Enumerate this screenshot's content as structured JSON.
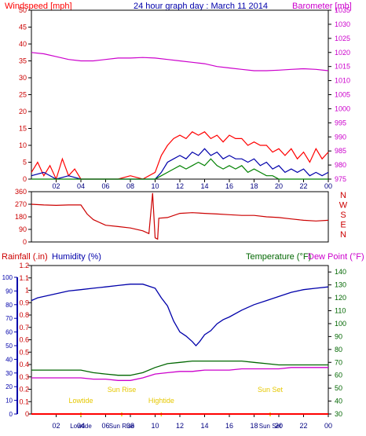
{
  "header": {
    "title": "24 hour graph day : March 11 2014",
    "left_label": "Windspeed [mph]",
    "right_label": "Barometer [mb]"
  },
  "colors": {
    "wind": "#ff0000",
    "gust": "#ff0000",
    "avg_wind": "#0000aa",
    "green": "#008000",
    "barometer": "#cc00cc",
    "direction": "#cc0000",
    "humidity": "#0000aa",
    "temperature": "#006600",
    "dewpoint": "#cc00cc",
    "events": "#e6c800",
    "title": "#0000aa"
  },
  "chart_data": [
    {
      "type": "line",
      "id": "wind_baro",
      "title": "24 hour graph day : March 11 2014",
      "ylabel": "Windspeed [mph]",
      "y2label": "Barometer [mb]",
      "x_ticks": [
        "02",
        "04",
        "06",
        "08",
        "10",
        "12",
        "14",
        "16",
        "18",
        "20",
        "22",
        "00"
      ],
      "y_ticks": [
        0,
        5,
        10,
        15,
        20,
        25,
        30,
        35,
        40,
        45,
        50
      ],
      "y2_ticks": [
        975,
        980,
        985,
        990,
        995,
        1000,
        1005,
        1010,
        1015,
        1020,
        1025,
        1030,
        1035
      ],
      "ylim": [
        0,
        50
      ],
      "y2lim": [
        975,
        1035
      ],
      "xlim": [
        0,
        24
      ],
      "series": [
        {
          "name": "Barometer",
          "axis": "right",
          "x": [
            0,
            1,
            2,
            3,
            4,
            5,
            6,
            7,
            8,
            9,
            10,
            11,
            12,
            13,
            14,
            15,
            16,
            17,
            18,
            19,
            20,
            21,
            22,
            23,
            24
          ],
          "values": [
            1020,
            1019.5,
            1018.5,
            1017.5,
            1017,
            1017,
            1017.5,
            1018,
            1018,
            1018.2,
            1018,
            1017.5,
            1017,
            1016.5,
            1016,
            1015,
            1014.5,
            1014,
            1013.5,
            1013.5,
            1013.7,
            1014,
            1014.2,
            1014,
            1013.5
          ]
        },
        {
          "name": "Gust",
          "axis": "left",
          "x": [
            0,
            0.5,
            1,
            1.5,
            2,
            2.5,
            3,
            3.5,
            4,
            5,
            6,
            7,
            8,
            9,
            10,
            10.5,
            11,
            11.5,
            12,
            12.5,
            13,
            13.5,
            14,
            14.5,
            15,
            15.5,
            16,
            16.5,
            17,
            17.5,
            18,
            18.5,
            19,
            19.5,
            20,
            20.5,
            21,
            21.5,
            22,
            22.5,
            23,
            23.5,
            24
          ],
          "values": [
            2,
            5,
            1,
            4,
            0,
            6,
            1,
            3,
            0,
            0,
            0,
            0,
            1,
            0,
            2,
            7,
            10,
            12,
            13,
            12,
            14,
            13,
            14,
            12,
            13,
            11,
            13,
            12,
            12,
            10,
            11,
            10,
            10,
            8,
            9,
            7,
            9,
            6,
            8,
            5,
            9,
            6,
            8
          ]
        },
        {
          "name": "Average wind",
          "axis": "left",
          "x": [
            0,
            1,
            2,
            3,
            4,
            6,
            8,
            10,
            10.5,
            11,
            11.5,
            12,
            12.5,
            13,
            13.5,
            14,
            14.5,
            15,
            15.5,
            16,
            16.5,
            17,
            17.5,
            18,
            18.5,
            19,
            19.5,
            20,
            20.5,
            21,
            21.5,
            22,
            22.5,
            23,
            23.5,
            24
          ],
          "values": [
            1,
            2,
            0,
            1,
            0,
            0,
            0,
            0,
            2,
            5,
            6,
            7,
            6,
            8,
            7,
            9,
            7,
            8,
            6,
            7,
            6,
            6,
            5,
            6,
            4,
            5,
            3,
            4,
            2,
            3,
            2,
            3,
            1,
            2,
            1,
            2
          ]
        },
        {
          "name": "Wind speed",
          "axis": "left",
          "x": [
            0,
            10,
            10.5,
            11,
            11.5,
            12,
            12.5,
            13,
            13.5,
            14,
            14.5,
            15,
            15.5,
            16,
            16.5,
            17,
            17.5,
            18,
            18.5,
            19,
            19.5,
            20,
            24
          ],
          "values": [
            0,
            0,
            1,
            2,
            3,
            4,
            3,
            4,
            5,
            4,
            6,
            4,
            3,
            4,
            3,
            4,
            2,
            3,
            2,
            1,
            1,
            0,
            0
          ]
        }
      ]
    },
    {
      "type": "line",
      "id": "direction",
      "y_ticks": [
        0,
        90,
        180,
        270,
        360
      ],
      "ylim": [
        0,
        360
      ],
      "xlim": [
        0,
        24
      ],
      "compass_labels": [
        "N",
        "W",
        "S",
        "E",
        "N"
      ],
      "series": [
        {
          "name": "Wind direction",
          "x": [
            0,
            1,
            2,
            3,
            4,
            4.5,
            5,
            6,
            7,
            8,
            9,
            9.5,
            9.8,
            10,
            10.2,
            10.3,
            11,
            12,
            13,
            14,
            15,
            16,
            17,
            18,
            19,
            20,
            21,
            22,
            23,
            24
          ],
          "values": [
            270,
            265,
            262,
            265,
            265,
            200,
            160,
            120,
            110,
            100,
            80,
            60,
            350,
            30,
            20,
            170,
            175,
            205,
            210,
            205,
            200,
            195,
            190,
            190,
            180,
            175,
            165,
            155,
            150,
            155
          ]
        }
      ]
    },
    {
      "type": "line",
      "id": "rain_humidity_temp",
      "ylabel": "Rainfall (.in)",
      "y1label": "Humidity (%)",
      "y2label": "Temperature (°F)",
      "y3label": "Dew Point (°F)",
      "x_ticks": [
        "02",
        "04",
        "06",
        "08",
        "10",
        "12",
        "14",
        "16",
        "18",
        "20",
        "22",
        "00"
      ],
      "y_ticks": [
        0,
        0.1,
        0.2,
        0.3,
        0.4,
        0.5,
        0.6,
        0.7,
        0.8,
        0.9,
        1,
        1.1,
        1.2
      ],
      "y1_ticks": [
        0,
        10,
        20,
        30,
        40,
        50,
        60,
        70,
        80,
        90,
        100
      ],
      "y2_ticks": [
        30,
        40,
        50,
        60,
        70,
        80,
        90,
        100,
        110,
        120,
        130,
        140
      ],
      "ylim": [
        0,
        1.2
      ],
      "y2lim": [
        30,
        145
      ],
      "xlim": [
        0,
        24
      ],
      "events": [
        {
          "label": "Lowtide",
          "x": 4.0
        },
        {
          "label": "Sun Rise",
          "x": 7.3
        },
        {
          "label": "Hightide",
          "x": 10.5
        },
        {
          "label": "Sun Set",
          "x": 19.3
        }
      ],
      "event_axis_labels": [
        "Lowtide",
        "Sun Rise",
        "Sun Set"
      ],
      "series": [
        {
          "name": "Humidity",
          "axis": "humidity",
          "x": [
            0,
            0.5,
            1,
            2,
            3,
            4,
            5,
            6,
            7,
            8,
            9,
            10,
            10.5,
            11,
            11.5,
            12,
            12.5,
            13,
            13.3,
            13.6,
            14,
            14.5,
            15,
            15.5,
            16,
            17,
            18,
            19,
            20,
            21,
            22,
            23,
            24
          ],
          "values": [
            83,
            85,
            86,
            88,
            90,
            91,
            92,
            93,
            94,
            95,
            95,
            92,
            85,
            79,
            68,
            60,
            57,
            53,
            50,
            53,
            58,
            61,
            66,
            69,
            71,
            76,
            80,
            83,
            86,
            89,
            91,
            92,
            93
          ]
        },
        {
          "name": "Temperature",
          "axis": "temperature",
          "x": [
            0,
            1,
            2,
            3,
            4,
            5,
            6,
            7,
            8,
            9,
            10,
            11,
            12,
            13,
            14,
            15,
            16,
            17,
            18,
            19,
            20,
            21,
            22,
            23,
            24
          ],
          "values": [
            64,
            64,
            64,
            64,
            64,
            62,
            61,
            60,
            60,
            62,
            66,
            69,
            70,
            71,
            71,
            71,
            71,
            71,
            70,
            69,
            68,
            68,
            68,
            68,
            68
          ]
        },
        {
          "name": "Dew Point",
          "axis": "temperature",
          "x": [
            0,
            1,
            2,
            3,
            4,
            5,
            6,
            7,
            8,
            9,
            10,
            11,
            12,
            13,
            14,
            15,
            16,
            17,
            18,
            19,
            20,
            21,
            22,
            23,
            24
          ],
          "values": [
            58,
            58,
            58,
            58,
            58,
            57,
            57,
            56,
            56,
            58,
            61,
            62,
            63,
            63,
            64,
            64,
            64,
            65,
            65,
            65,
            65,
            66,
            66,
            66,
            66
          ]
        },
        {
          "name": "Rainfall",
          "axis": "rain",
          "x": [
            0,
            24
          ],
          "values": [
            0,
            0
          ]
        }
      ]
    }
  ]
}
